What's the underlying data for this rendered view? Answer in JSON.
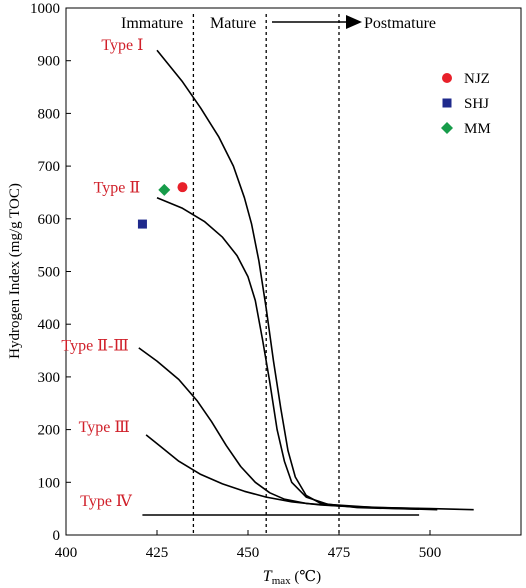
{
  "chart_data": {
    "type": "line",
    "xlabel_main": "T",
    "xlabel_sub": "max",
    "xlabel_unit": " (℃)",
    "ylabel": "Hydrogen Index (mg/g TOC)",
    "xlim": [
      400,
      525
    ],
    "ylim": [
      0,
      1000
    ],
    "x_ticks": [
      400,
      425,
      450,
      475,
      500
    ],
    "y_ticks": [
      0,
      100,
      200,
      300,
      400,
      500,
      600,
      700,
      800,
      900,
      1000
    ],
    "maturity_boundaries": [
      435,
      455,
      475
    ],
    "stages": [
      "Immature",
      "Mature",
      "Postmature"
    ],
    "curves": [
      {
        "label": "Type Ⅰ",
        "label_at": [
          415.5,
          920
        ],
        "points": [
          [
            425,
            920
          ],
          [
            432,
            860
          ],
          [
            437,
            810
          ],
          [
            442,
            755
          ],
          [
            446,
            700
          ],
          [
            449,
            640
          ],
          [
            451,
            590
          ],
          [
            453,
            520
          ],
          [
            455,
            430
          ],
          [
            457,
            330
          ],
          [
            459,
            240
          ],
          [
            461,
            160
          ],
          [
            463,
            110
          ],
          [
            466,
            75
          ],
          [
            470,
            60
          ],
          [
            480,
            52
          ],
          [
            490,
            50
          ],
          [
            497,
            49
          ]
        ]
      },
      {
        "label": "Type Ⅱ",
        "label_at": [
          414,
          650
        ],
        "points": [
          [
            425,
            640
          ],
          [
            432,
            620
          ],
          [
            438,
            595
          ],
          [
            443,
            565
          ],
          [
            447,
            530
          ],
          [
            450,
            490
          ],
          [
            452,
            445
          ],
          [
            454,
            370
          ],
          [
            456,
            290
          ],
          [
            458,
            200
          ],
          [
            460,
            140
          ],
          [
            462,
            100
          ],
          [
            466,
            72
          ],
          [
            472,
            58
          ],
          [
            485,
            52
          ],
          [
            500,
            50
          ],
          [
            512,
            48
          ]
        ]
      },
      {
        "label": "Type Ⅱ-Ⅲ",
        "label_at": [
          408,
          350
        ],
        "points": [
          [
            420,
            355
          ],
          [
            425,
            330
          ],
          [
            431,
            295
          ],
          [
            436,
            255
          ],
          [
            440,
            215
          ],
          [
            444,
            170
          ],
          [
            448,
            130
          ],
          [
            452,
            100
          ],
          [
            456,
            80
          ],
          [
            460,
            68
          ],
          [
            466,
            60
          ],
          [
            475,
            55
          ],
          [
            487,
            52
          ],
          [
            497,
            50
          ]
        ]
      },
      {
        "label": "Type  Ⅲ",
        "label_at": [
          410.5,
          195
        ],
        "points": [
          [
            422,
            190
          ],
          [
            426,
            168
          ],
          [
            431,
            140
          ],
          [
            437,
            115
          ],
          [
            443,
            97
          ],
          [
            449,
            83
          ],
          [
            455,
            72
          ],
          [
            462,
            63
          ],
          [
            470,
            57
          ],
          [
            480,
            53
          ],
          [
            492,
            50
          ],
          [
            502,
            48
          ]
        ]
      },
      {
        "label": "Type Ⅳ",
        "label_at": [
          411,
          55
        ],
        "points": [
          [
            421,
            38
          ],
          [
            497,
            38
          ]
        ]
      }
    ],
    "series": [
      {
        "name": "NJZ",
        "shape": "circle",
        "color": "#e8202a",
        "points": [
          [
            432,
            660
          ]
        ]
      },
      {
        "name": "SHJ",
        "shape": "square",
        "color": "#1f2a8c",
        "points": [
          [
            421,
            590
          ]
        ]
      },
      {
        "name": "MM",
        "shape": "diamond",
        "color": "#179c4a",
        "points": [
          [
            427,
            655
          ]
        ]
      }
    ]
  }
}
